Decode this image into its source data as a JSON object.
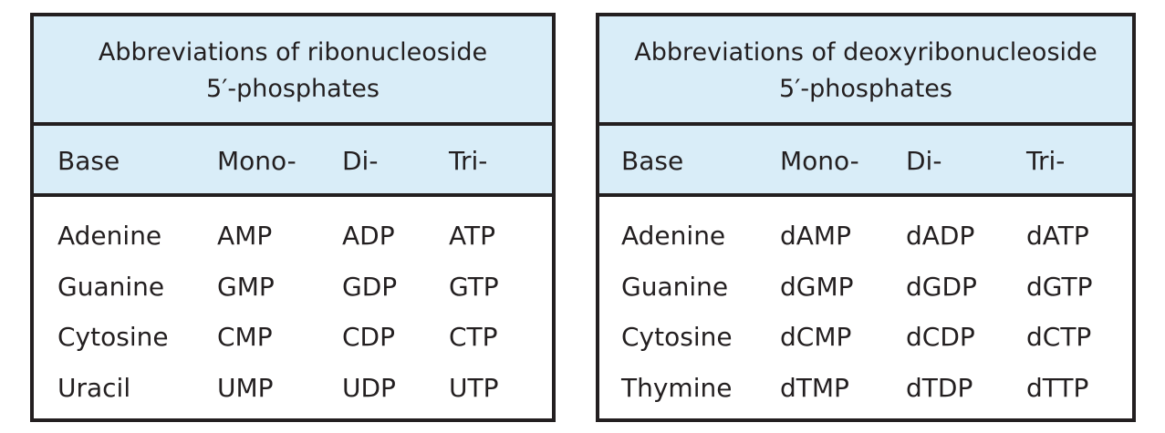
{
  "tables": [
    {
      "title_line1": "Abbreviations of ribonucleoside",
      "title_line2": "5′-phosphates",
      "headers": [
        "Base",
        "Mono-",
        "Di-",
        "Tri-"
      ],
      "rows": [
        [
          "Adenine",
          "AMP",
          "ADP",
          "ATP"
        ],
        [
          "Guanine",
          "GMP",
          "GDP",
          "GTP"
        ],
        [
          "Cytosine",
          "CMP",
          "CDP",
          "CTP"
        ],
        [
          "Uracil",
          "UMP",
          "UDP",
          "UTP"
        ]
      ]
    },
    {
      "title_line1": "Abbreviations of deoxyribonucleoside",
      "title_line2": "5′-phosphates",
      "headers": [
        "Base",
        "Mono-",
        "Di-",
        "Tri-"
      ],
      "rows": [
        [
          "Adenine",
          "dAMP",
          "dADP",
          "dATP"
        ],
        [
          "Guanine",
          "dGMP",
          "dGDP",
          "dGTP"
        ],
        [
          "Cytosine",
          "dCMP",
          "dCDP",
          "dCTP"
        ],
        [
          "Thymine",
          "dTMP",
          "dTDP",
          "dTTP"
        ]
      ]
    }
  ],
  "colors": {
    "band": "#d9edf8",
    "border": "#231f20",
    "text": "#231f20"
  }
}
